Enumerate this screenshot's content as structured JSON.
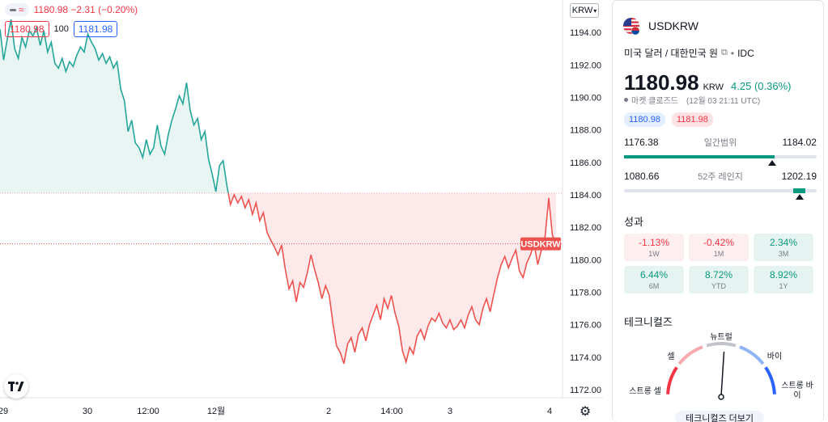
{
  "legend": {
    "approx_symbol": "≈",
    "values": "1180.98  −2.31 (−0.20%)"
  },
  "order": {
    "sell_price": "1180.98",
    "quantity": "100",
    "buy_price": "1181.98"
  },
  "currency_selector": "KRW",
  "chart_data": {
    "type": "area",
    "title": "",
    "xlabel": "",
    "ylabel": "",
    "ylim": [
      1171.5,
      1196
    ],
    "y_ticks": [
      "1194.00",
      "1192.00",
      "1190.00",
      "1188.00",
      "1186.00",
      "1184.00",
      "1182.00",
      "1180.00",
      "1178.00",
      "1176.00",
      "1174.00",
      "1172.00"
    ],
    "x_ticks": [
      "29",
      "30",
      "12:00",
      "12월",
      "2",
      "14:00",
      "3",
      "4"
    ],
    "baseline": 1184.1,
    "last_value": 1180.98,
    "series": [
      {
        "values": [
          1194.2,
          1192.3,
          1193.6,
          1194.8,
          1193.0,
          1192.4,
          1193.7,
          1193.1,
          1194.1,
          1193.8,
          1194.3,
          1193.2,
          1194.1,
          1192.8,
          1193.4,
          1192.1,
          1191.8,
          1192.4,
          1191.6,
          1192.2,
          1191.9,
          1192.6,
          1193.1,
          1192.8,
          1193.9,
          1193.4,
          1193.0,
          1192.3,
          1192.7,
          1192.1,
          1192.5,
          1191.8,
          1192.2,
          1190.5,
          1189.8,
          1187.9,
          1188.6,
          1187.2,
          1186.9,
          1186.3,
          1187.4,
          1186.5,
          1186.9,
          1188.3,
          1187.0,
          1186.5,
          1187.7,
          1188.6,
          1189.3,
          1190.1,
          1189.6,
          1190.9,
          1189.2,
          1188.3,
          1188.7,
          1187.4,
          1187.9,
          1186.2,
          1185.3,
          1184.2,
          1185.8,
          1186.1,
          1184.6,
          1183.4,
          1184.0,
          1183.5,
          1183.9,
          1183.2,
          1183.7,
          1182.8,
          1183.5,
          1182.4,
          1182.9,
          1181.7,
          1181.2,
          1180.8,
          1180.3,
          1180.9,
          1179.4,
          1178.2,
          1178.7,
          1177.4,
          1178.6,
          1178.3,
          1179.2,
          1180.3,
          1179.4,
          1178.6,
          1177.6,
          1178.4,
          1177.8,
          1176.1,
          1174.7,
          1174.3,
          1173.6,
          1174.8,
          1175.2,
          1174.3,
          1175.4,
          1175.8,
          1175.0,
          1176.0,
          1176.6,
          1177.2,
          1176.3,
          1177.6,
          1177.0,
          1177.8,
          1176.7,
          1175.9,
          1174.4,
          1173.7,
          1174.6,
          1174.2,
          1175.3,
          1175.7,
          1175.1,
          1175.9,
          1176.4,
          1176.2,
          1176.7,
          1176.1,
          1175.8,
          1176.3,
          1175.7,
          1175.9,
          1176.3,
          1175.8,
          1176.6,
          1177.1,
          1176.3,
          1176.0,
          1177.0,
          1177.6,
          1176.8,
          1177.9,
          1178.9,
          1179.7,
          1180.2,
          1179.5,
          1180.1,
          1180.6,
          1179.3,
          1178.9,
          1179.8,
          1180.3,
          1181.0,
          1179.7,
          1180.6,
          1181.4,
          1183.8,
          1181.5,
          1180.98
        ]
      }
    ],
    "colors": {
      "above": "#26a69a",
      "below": "#ef5350",
      "above_fill": "#e8f5f2",
      "below_fill": "#fde9ea",
      "baseline_line": "#f4a6ab"
    },
    "last_label": "USDKRW"
  },
  "panel": {
    "symbol": "USDKRW",
    "description": "미국 달러 / 대한민국 원",
    "exchange": "IDC",
    "last_price": "1180.98",
    "currency": "KRW",
    "change": "4.25 (0.36%)",
    "market_status": "마켓 클로즈드",
    "market_time": "(12월 03 21:11 UTC)",
    "bid": "1180.98",
    "ask": "1181.98",
    "day_range": {
      "low": "1176.38",
      "high": "1184.02",
      "title": "일간범위",
      "fill_from": 0.0,
      "fill_to": 0.78,
      "marker": 0.77
    },
    "week52_range": {
      "low": "1080.66",
      "high": "1202.19",
      "title": "52주 레인지",
      "fill_from": 0.88,
      "fill_to": 0.94,
      "marker": 0.91
    },
    "performance_title": "성과",
    "performance": [
      {
        "value": "-1.13%",
        "period": "1W",
        "sign": "neg"
      },
      {
        "value": "-0.42%",
        "period": "1M",
        "sign": "neg"
      },
      {
        "value": "2.34%",
        "period": "3M",
        "sign": "pos"
      },
      {
        "value": "6.44%",
        "period": "6M",
        "sign": "pos"
      },
      {
        "value": "8.72%",
        "period": "YTD",
        "sign": "pos"
      },
      {
        "value": "8.92%",
        "period": "1Y",
        "sign": "pos"
      }
    ],
    "technicals_title": "테크니컬즈",
    "gauge": {
      "neutral": "뉴트럴",
      "sell": "셀",
      "buy": "바이",
      "strong_sell": "스트롱 셀",
      "strong_buy": "스트롱 바이",
      "needle_value": 0.52
    },
    "technicals_more": "테크니컬즈 더보기"
  }
}
